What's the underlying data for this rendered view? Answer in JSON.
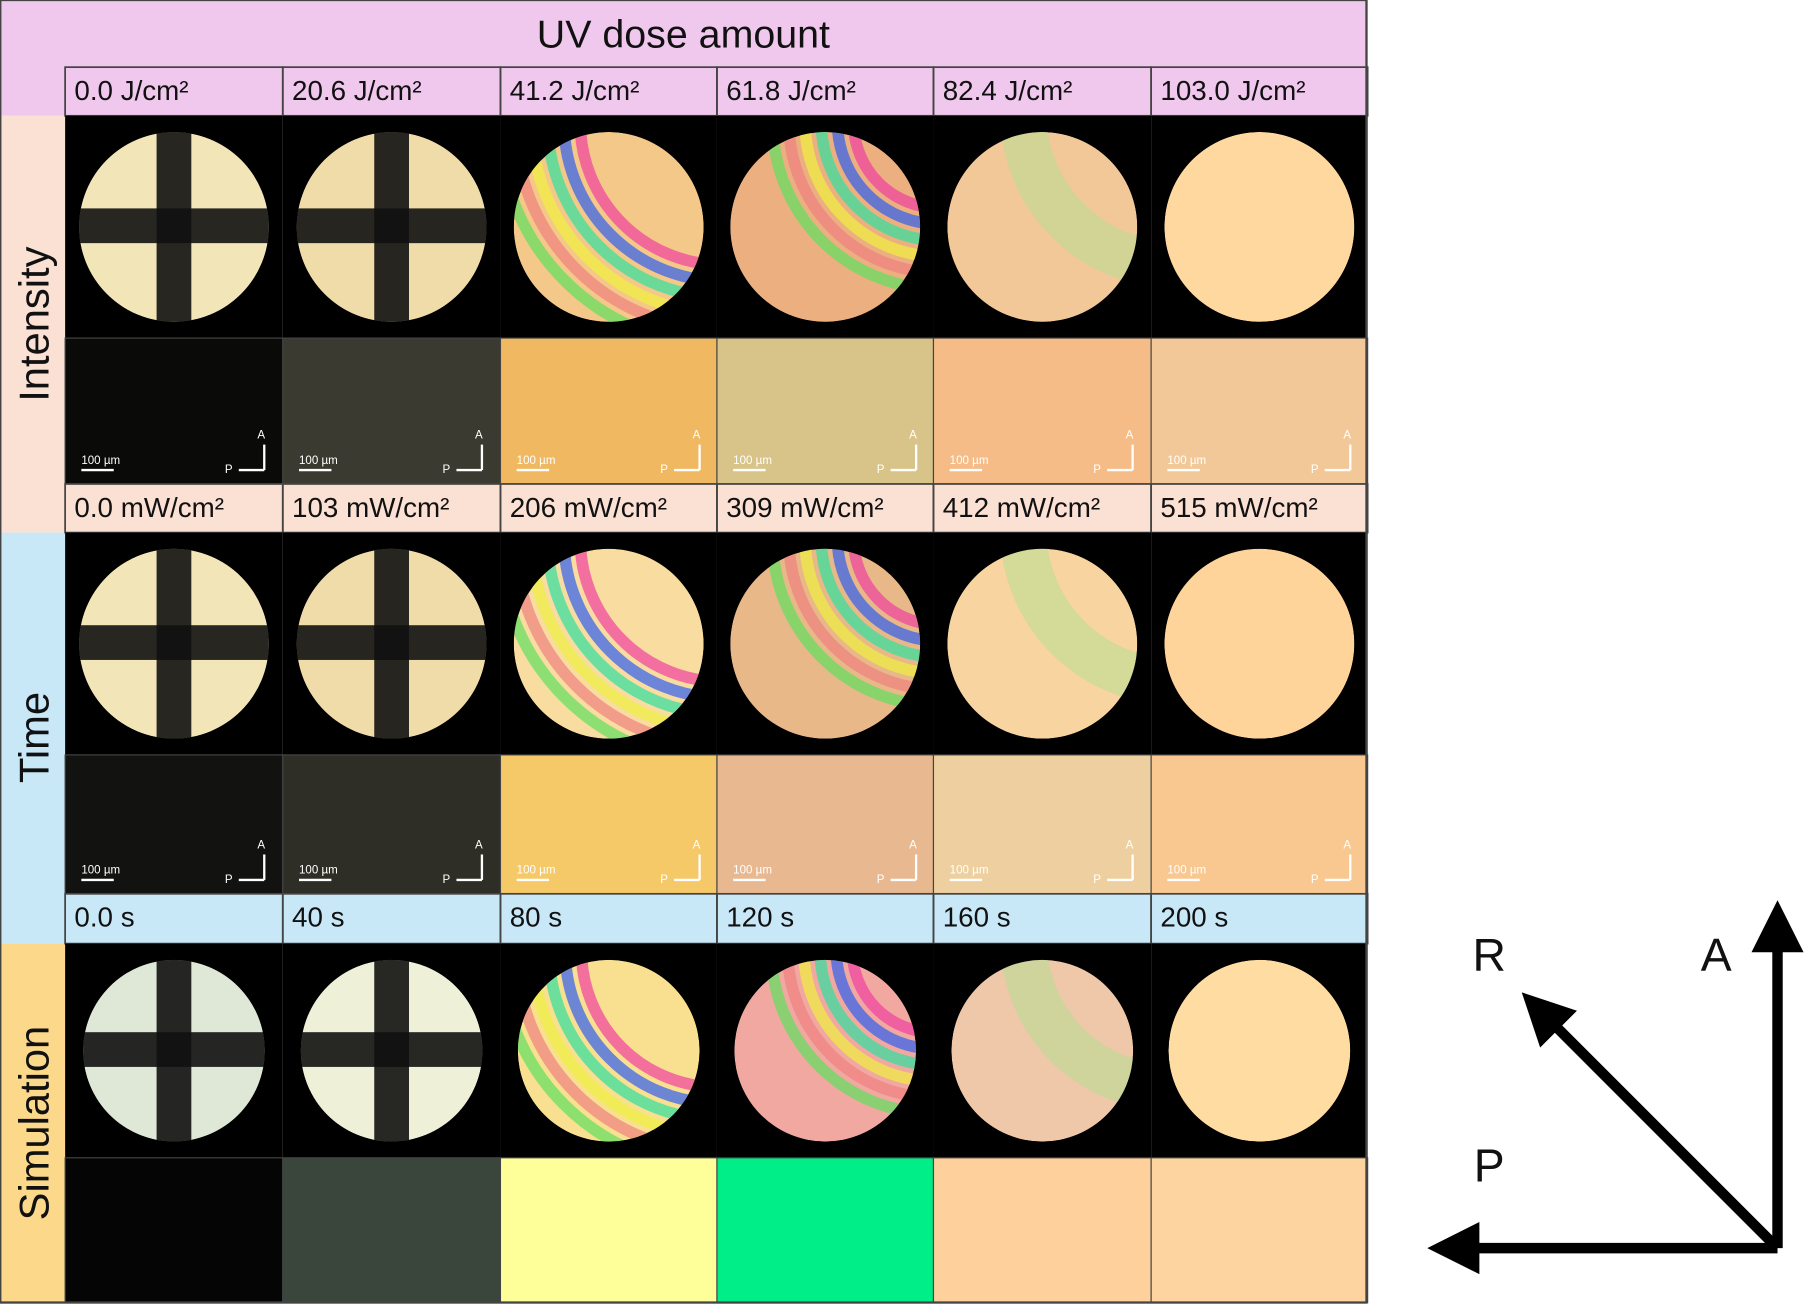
{
  "header": {
    "title": "UV dose amount",
    "doses": [
      "0.0 J/cm²",
      "20.6 J/cm²",
      "41.2 J/cm²",
      "61.8 J/cm²",
      "82.4 J/cm²",
      "103.0 J/cm²"
    ]
  },
  "rows": [
    {
      "label": "Intensity",
      "settings": [
        "0.0 mW/cm²",
        "103 mW/cm²",
        "206 mW/cm²",
        "309 mW/cm²",
        "412 mW/cm²",
        "515 mW/cm²"
      ]
    },
    {
      "label": "Time",
      "settings": [
        "0.0 s",
        "40 s",
        "80 s",
        "120 s",
        "160 s",
        "200 s"
      ]
    },
    {
      "label": "Simulation"
    }
  ],
  "micrograph": {
    "scale_bar": "100 µm",
    "analyzer": "A",
    "polarizer": "P"
  },
  "axes": {
    "rubbing": "R",
    "analyzer": "A",
    "polarizer": "P"
  }
}
